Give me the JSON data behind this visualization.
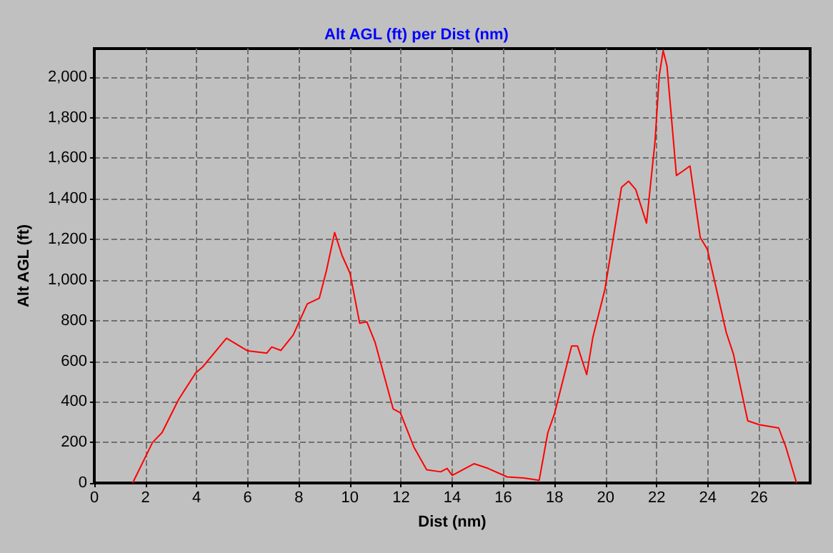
{
  "chart_data": {
    "type": "line",
    "title": "Alt AGL (ft) per Dist (nm)",
    "xlabel": "Dist (nm)",
    "ylabel": "Alt AGL (ft)",
    "x": [
      1.5,
      2.28,
      2.65,
      3.3,
      3.96,
      4.24,
      5.17,
      6.0,
      6.75,
      6.94,
      7.3,
      7.78,
      8.33,
      8.8,
      9.08,
      9.4,
      9.69,
      10.0,
      10.38,
      10.66,
      10.98,
      11.69,
      11.97,
      12.5,
      13.0,
      13.55,
      13.8,
      14.0,
      14.85,
      15.4,
      16.15,
      16.8,
      17.4,
      17.74,
      18.0,
      18.67,
      18.9,
      19.26,
      19.5,
      19.97,
      20.62,
      20.9,
      21.18,
      21.6,
      21.93,
      22.1,
      22.25,
      22.4,
      22.77,
      23.05,
      23.3,
      23.7,
      23.98,
      24.72,
      25.0,
      25.56,
      26.02,
      26.77,
      27.05,
      27.47
    ],
    "series": [
      {
        "color": "#ff0000",
        "values": [
          0,
          200,
          248,
          412,
          541,
          572,
          713,
          651,
          640,
          670,
          653,
          729,
          882,
          910,
          1046,
          1234,
          1121,
          1034,
          787,
          794,
          694,
          365,
          346,
          177,
          65,
          55,
          72,
          37,
          95,
          72,
          30,
          25,
          13,
          248,
          341,
          675,
          675,
          534,
          717,
          952,
          1456,
          1487,
          1445,
          1280,
          1680,
          2008,
          2130,
          2055,
          1515,
          1539,
          1562,
          1210,
          1151,
          741,
          635,
          306,
          287,
          271,
          177,
          0
        ]
      }
    ],
    "xlim": [
      0,
      28
    ],
    "xticks": [
      0,
      2,
      4,
      6,
      8,
      10,
      12,
      14,
      16,
      18,
      20,
      22,
      24,
      26
    ],
    "ylim": [
      0,
      2140
    ],
    "yticks": [
      0,
      200,
      400,
      600,
      800,
      {
        "value": 1000,
        "label": "1,000"
      },
      {
        "value": 1200,
        "label": "1,200"
      },
      {
        "value": 1400,
        "label": "1,400"
      },
      {
        "value": 1600,
        "label": "1,600"
      },
      {
        "value": 1800,
        "label": "1,800"
      },
      {
        "value": 2000,
        "label": "2,000"
      }
    ],
    "grid": true,
    "marker": "none",
    "line_style": "solid"
  }
}
